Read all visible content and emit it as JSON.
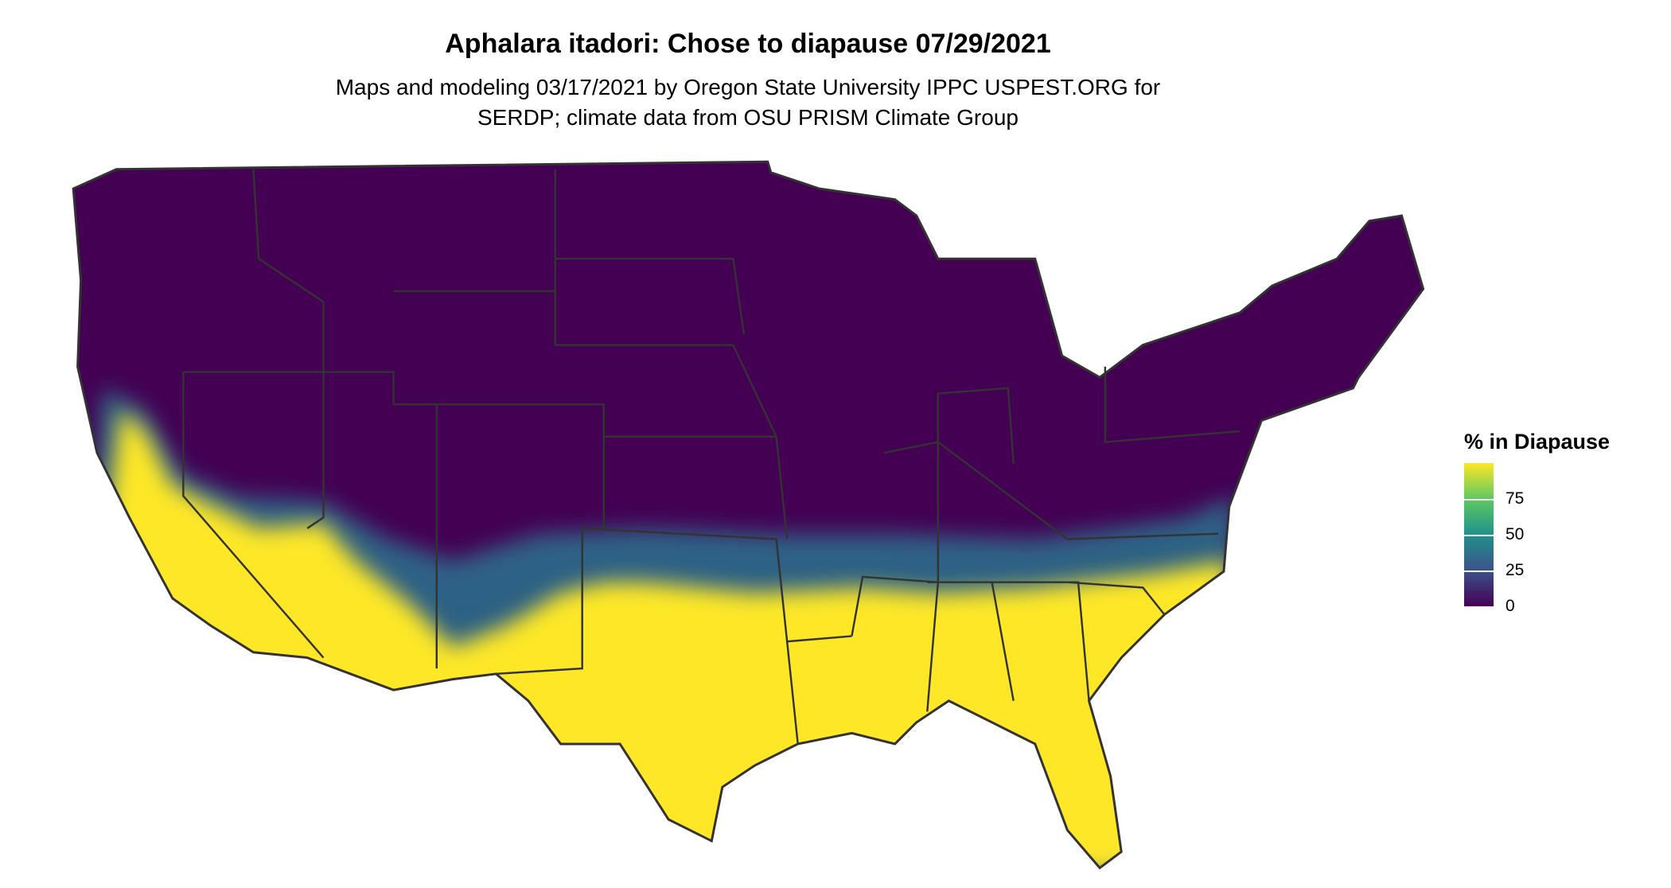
{
  "title": "Aphalara itadori: Chose to diapause 07/29/2021",
  "subtitle_line1": "Maps and modeling 03/17/2021 by Oregon State University IPPC USPEST.ORG for",
  "subtitle_line2": "SERDP; climate data from OSU PRISM Climate Group",
  "chart_data": {
    "type": "heatmap",
    "title": "Aphalara itadori: Chose to diapause 07/29/2021",
    "region": "Contiguous United States",
    "legend": {
      "title": "% in Diapause",
      "ticks": [
        "0",
        "25",
        "50",
        "75"
      ],
      "range": [
        0,
        100
      ],
      "colormap": "viridis",
      "colors": [
        "#440154",
        "#3b528b",
        "#21918c",
        "#5ec962",
        "#fde725"
      ],
      "placement": "right"
    },
    "pattern": "Near 0% across northern and central states; near 100% across southern states (CA coast/valleys, AZ, southern NM, TX, OK south, LA, MS, AL, GA, FL, SC, southern NC), with transition band along ~35-37°N"
  }
}
